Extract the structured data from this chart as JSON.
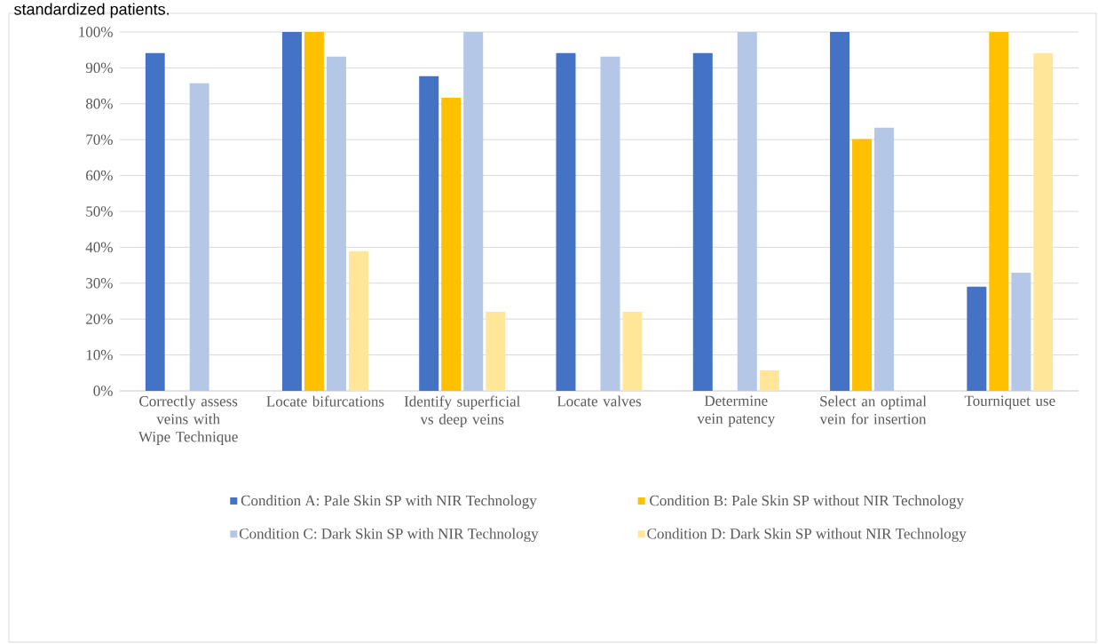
{
  "chart_data": {
    "type": "bar",
    "annotations": [
      "standardized patients."
    ],
    "categories": [
      "Correctly assess veins with Wipe Technique",
      "Locate bifurcations",
      "Identify superficial vs deep veins",
      "Locate valves",
      "Determine vein patency",
      "Select an optimal vein for insertion",
      "Tourniquet use"
    ],
    "series": [
      {
        "name": "Condition A: Pale Skin SP with NIR Technology",
        "color": "#4472c4",
        "values": [
          94.1,
          100,
          87.7,
          94.1,
          94.1,
          100,
          29
        ]
      },
      {
        "name": "Condition B: Pale Skin SP without NIR Technology",
        "color": "#ffc000",
        "values": [
          0,
          100,
          81.7,
          0,
          0,
          70.2,
          100
        ]
      },
      {
        "name": "Condition C: Dark Skin SP with NIR Technology",
        "color": "#b4c7e7",
        "values": [
          85.7,
          93.1,
          100,
          93.1,
          100,
          73.3,
          32.9
        ]
      },
      {
        "name": "Condition D: Dark Skin SP without NIR Technology",
        "color": "#ffe699",
        "values": [
          0,
          38.9,
          22,
          22,
          5.7,
          0,
          94.1
        ]
      }
    ],
    "ylim": [
      0,
      100
    ],
    "yticks": [
      {
        "value": 0,
        "label": "0%"
      },
      {
        "value": 10,
        "label": "10%"
      },
      {
        "value": 20,
        "label": "20%"
      },
      {
        "value": 30,
        "label": "30%"
      },
      {
        "value": 40,
        "label": "40%"
      },
      {
        "value": 50,
        "label": "50%"
      },
      {
        "value": 60,
        "label": "60%"
      },
      {
        "value": 70,
        "label": "70%"
      },
      {
        "value": 80,
        "label": "80%"
      },
      {
        "value": 90,
        "label": "90%"
      },
      {
        "value": 100,
        "label": "100%"
      }
    ],
    "grid": "y",
    "legend": "bottom"
  }
}
